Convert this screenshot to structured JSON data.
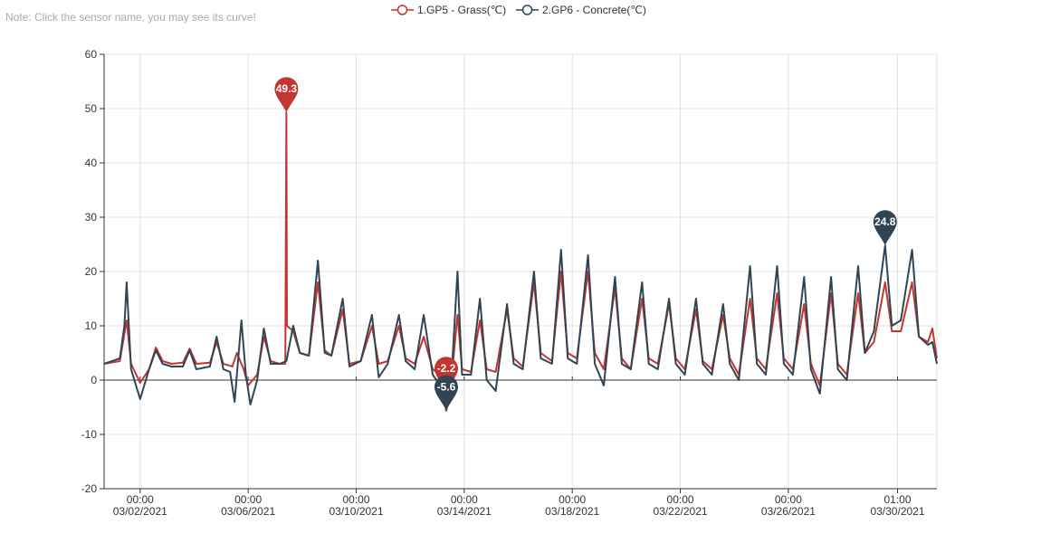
{
  "note": "Note: Click the sensor name, you may see its curve!",
  "chart_data": {
    "type": "line",
    "x_range": [
      "2021-02-28T16:00",
      "2021-03-31T12:00"
    ],
    "ylim": [
      -20,
      60
    ],
    "y_ticks": [
      60,
      50,
      40,
      30,
      20,
      10,
      0,
      -10,
      -20
    ],
    "x_ticks": [
      {
        "at": "2021-03-02T00:00",
        "time": "00:00",
        "date": "03/02/2021"
      },
      {
        "at": "2021-03-06T00:00",
        "time": "00:00",
        "date": "03/06/2021"
      },
      {
        "at": "2021-03-10T00:00",
        "time": "00:00",
        "date": "03/10/2021"
      },
      {
        "at": "2021-03-14T00:00",
        "time": "00:00",
        "date": "03/14/2021"
      },
      {
        "at": "2021-03-18T00:00",
        "time": "00:00",
        "date": "03/18/2021"
      },
      {
        "at": "2021-03-22T00:00",
        "time": "00:00",
        "date": "03/22/2021"
      },
      {
        "at": "2021-03-26T00:00",
        "time": "00:00",
        "date": "03/26/2021"
      },
      {
        "at": "2021-03-30T01:00",
        "time": "01:00",
        "date": "03/30/2021"
      }
    ],
    "grid": true,
    "legend_position": "top-center",
    "series": [
      {
        "name": "1.GP5 - Grass(℃)",
        "color": "#c23531",
        "points": [
          [
            "2021-02-28T16:00",
            3.0
          ],
          [
            "2021-03-01T06:00",
            3.5
          ],
          [
            "2021-03-01T12:00",
            11.0
          ],
          [
            "2021-03-01T16:00",
            3.0
          ],
          [
            "2021-03-02T00:00",
            -0.5
          ],
          [
            "2021-03-02T08:00",
            2.0
          ],
          [
            "2021-03-02T14:00",
            6.0
          ],
          [
            "2021-03-02T20:00",
            3.5
          ],
          [
            "2021-03-03T04:00",
            3.0
          ],
          [
            "2021-03-03T14:00",
            3.2
          ],
          [
            "2021-03-03T20:00",
            5.8
          ],
          [
            "2021-03-04T02:00",
            3.0
          ],
          [
            "2021-03-04T14:00",
            3.2
          ],
          [
            "2021-03-04T20:00",
            7.0
          ],
          [
            "2021-03-05T02:00",
            3.0
          ],
          [
            "2021-03-05T10:00",
            2.5
          ],
          [
            "2021-03-05T14:00",
            5.0
          ],
          [
            "2021-03-05T20:00",
            2.0
          ],
          [
            "2021-03-06T00:00",
            -1.0
          ],
          [
            "2021-03-06T08:00",
            1.0
          ],
          [
            "2021-03-06T14:00",
            8.0
          ],
          [
            "2021-03-06T20:00",
            3.5
          ],
          [
            "2021-03-07T04:00",
            3.0
          ],
          [
            "2021-03-07T09:00",
            3.0
          ],
          [
            "2021-03-07T10:00",
            49.3
          ],
          [
            "2021-03-07T10:30",
            10.0
          ],
          [
            "2021-03-07T16:00",
            9.0
          ],
          [
            "2021-03-07T22:00",
            5.0
          ],
          [
            "2021-03-08T06:00",
            4.5
          ],
          [
            "2021-03-08T14:00",
            18.0
          ],
          [
            "2021-03-08T20:00",
            5.5
          ],
          [
            "2021-03-09T02:00",
            4.5
          ],
          [
            "2021-03-09T12:00",
            13.0
          ],
          [
            "2021-03-09T18:00",
            3.0
          ],
          [
            "2021-03-10T04:00",
            3.5
          ],
          [
            "2021-03-10T14:00",
            10.0
          ],
          [
            "2021-03-10T20:00",
            3.0
          ],
          [
            "2021-03-11T04:00",
            3.5
          ],
          [
            "2021-03-11T14:00",
            10.0
          ],
          [
            "2021-03-11T20:00",
            4.0
          ],
          [
            "2021-03-12T04:00",
            3.0
          ],
          [
            "2021-03-12T12:00",
            8.0
          ],
          [
            "2021-03-12T20:00",
            2.0
          ],
          [
            "2021-03-13T06:00",
            0.5
          ],
          [
            "2021-03-13T14:00",
            3.0
          ],
          [
            "2021-03-13T18:00",
            12.0
          ],
          [
            "2021-03-13T22:00",
            2.0
          ],
          [
            "2021-03-14T06:00",
            1.5
          ],
          [
            "2021-03-14T14:00",
            11.0
          ],
          [
            "2021-03-14T20:00",
            2.0
          ],
          [
            "2021-03-15T04:00",
            1.5
          ],
          [
            "2021-03-15T14:00",
            13.0
          ],
          [
            "2021-03-15T20:00",
            4.0
          ],
          [
            "2021-03-16T04:00",
            2.5
          ],
          [
            "2021-03-16T14:00",
            18.0
          ],
          [
            "2021-03-16T20:00",
            5.0
          ],
          [
            "2021-03-17T06:00",
            3.5
          ],
          [
            "2021-03-17T14:00",
            20.0
          ],
          [
            "2021-03-17T20:00",
            5.0
          ],
          [
            "2021-03-18T04:00",
            4.0
          ],
          [
            "2021-03-18T14:00",
            20.0
          ],
          [
            "2021-03-18T20:00",
            5.0
          ],
          [
            "2021-03-19T04:00",
            2.0
          ],
          [
            "2021-03-19T14:00",
            17.0
          ],
          [
            "2021-03-19T20:00",
            4.0
          ],
          [
            "2021-03-20T04:00",
            2.0
          ],
          [
            "2021-03-20T14:00",
            15.0
          ],
          [
            "2021-03-20T20:00",
            4.0
          ],
          [
            "2021-03-21T04:00",
            3.0
          ],
          [
            "2021-03-21T14:00",
            14.0
          ],
          [
            "2021-03-21T20:00",
            4.0
          ],
          [
            "2021-03-22T04:00",
            2.0
          ],
          [
            "2021-03-22T14:00",
            13.0
          ],
          [
            "2021-03-22T20:00",
            3.5
          ],
          [
            "2021-03-23T04:00",
            2.0
          ],
          [
            "2021-03-23T14:00",
            12.0
          ],
          [
            "2021-03-23T20:00",
            4.0
          ],
          [
            "2021-03-24T04:00",
            1.0
          ],
          [
            "2021-03-24T14:00",
            15.0
          ],
          [
            "2021-03-24T20:00",
            4.0
          ],
          [
            "2021-03-25T04:00",
            2.0
          ],
          [
            "2021-03-25T14:00",
            16.0
          ],
          [
            "2021-03-25T20:00",
            4.0
          ],
          [
            "2021-03-26T04:00",
            2.0
          ],
          [
            "2021-03-26T14:00",
            14.0
          ],
          [
            "2021-03-26T20:00",
            3.0
          ],
          [
            "2021-03-27T04:00",
            -1.0
          ],
          [
            "2021-03-27T14:00",
            16.0
          ],
          [
            "2021-03-27T20:00",
            3.0
          ],
          [
            "2021-03-28T04:00",
            1.0
          ],
          [
            "2021-03-28T14:00",
            16.0
          ],
          [
            "2021-03-28T20:00",
            5.0
          ],
          [
            "2021-03-29T04:00",
            7.0
          ],
          [
            "2021-03-29T14:00",
            18.0
          ],
          [
            "2021-03-29T20:00",
            9.0
          ],
          [
            "2021-03-30T04:00",
            9.0
          ],
          [
            "2021-03-30T14:00",
            18.0
          ],
          [
            "2021-03-30T20:00",
            8.0
          ],
          [
            "2021-03-31T04:00",
            7.0
          ],
          [
            "2021-03-31T08:00",
            9.5
          ],
          [
            "2021-03-31T12:00",
            4.0
          ]
        ],
        "markers": [
          {
            "label": "49.3",
            "at": "2021-03-07T10:00",
            "value": 49.3
          },
          {
            "label": "-2.2",
            "at": "2021-03-13T08:00",
            "value": -2.2
          }
        ]
      },
      {
        "name": "2.GP6 - Concrete(℃)",
        "color": "#2f4554",
        "points": [
          [
            "2021-02-28T16:00",
            3.0
          ],
          [
            "2021-03-01T06:00",
            4.0
          ],
          [
            "2021-03-01T10:00",
            10.0
          ],
          [
            "2021-03-01T12:00",
            18.0
          ],
          [
            "2021-03-01T16:00",
            2.0
          ],
          [
            "2021-03-02T00:00",
            -3.5
          ],
          [
            "2021-03-02T08:00",
            2.0
          ],
          [
            "2021-03-02T14:00",
            5.5
          ],
          [
            "2021-03-02T20:00",
            3.0
          ],
          [
            "2021-03-03T04:00",
            2.5
          ],
          [
            "2021-03-03T14:00",
            2.5
          ],
          [
            "2021-03-03T20:00",
            5.5
          ],
          [
            "2021-03-04T02:00",
            2.0
          ],
          [
            "2021-03-04T14:00",
            2.5
          ],
          [
            "2021-03-04T20:00",
            8.0
          ],
          [
            "2021-03-05T02:00",
            2.0
          ],
          [
            "2021-03-05T08:00",
            1.5
          ],
          [
            "2021-03-05T12:00",
            -4.0
          ],
          [
            "2021-03-05T18:00",
            11.0
          ],
          [
            "2021-03-05T22:00",
            1.0
          ],
          [
            "2021-03-06T02:00",
            -4.5
          ],
          [
            "2021-03-06T08:00",
            0.0
          ],
          [
            "2021-03-06T14:00",
            9.5
          ],
          [
            "2021-03-06T20:00",
            3.0
          ],
          [
            "2021-03-07T04:00",
            3.0
          ],
          [
            "2021-03-07T10:00",
            3.5
          ],
          [
            "2021-03-07T16:00",
            10.0
          ],
          [
            "2021-03-07T22:00",
            5.0
          ],
          [
            "2021-03-08T06:00",
            4.5
          ],
          [
            "2021-03-08T14:00",
            22.0
          ],
          [
            "2021-03-08T20:00",
            5.0
          ],
          [
            "2021-03-09T02:00",
            4.5
          ],
          [
            "2021-03-09T12:00",
            15.0
          ],
          [
            "2021-03-09T18:00",
            2.5
          ],
          [
            "2021-03-10T04:00",
            3.5
          ],
          [
            "2021-03-10T14:00",
            12.0
          ],
          [
            "2021-03-10T20:00",
            0.5
          ],
          [
            "2021-03-11T04:00",
            3.0
          ],
          [
            "2021-03-11T14:00",
            12.0
          ],
          [
            "2021-03-11T20:00",
            3.5
          ],
          [
            "2021-03-12T04:00",
            2.0
          ],
          [
            "2021-03-12T12:00",
            12.0
          ],
          [
            "2021-03-12T20:00",
            1.0
          ],
          [
            "2021-03-13T06:00",
            -2.0
          ],
          [
            "2021-03-13T08:00",
            -5.6
          ],
          [
            "2021-03-13T12:00",
            -2.0
          ],
          [
            "2021-03-13T18:00",
            20.0
          ],
          [
            "2021-03-13T22:00",
            1.0
          ],
          [
            "2021-03-14T06:00",
            1.0
          ],
          [
            "2021-03-14T14:00",
            15.0
          ],
          [
            "2021-03-14T20:00",
            0.0
          ],
          [
            "2021-03-15T04:00",
            -2.0
          ],
          [
            "2021-03-15T14:00",
            14.0
          ],
          [
            "2021-03-15T20:00",
            3.0
          ],
          [
            "2021-03-16T04:00",
            2.0
          ],
          [
            "2021-03-16T14:00",
            20.0
          ],
          [
            "2021-03-16T20:00",
            4.0
          ],
          [
            "2021-03-17T06:00",
            3.0
          ],
          [
            "2021-03-17T14:00",
            24.0
          ],
          [
            "2021-03-17T20:00",
            4.0
          ],
          [
            "2021-03-18T04:00",
            3.0
          ],
          [
            "2021-03-18T14:00",
            23.0
          ],
          [
            "2021-03-18T20:00",
            3.0
          ],
          [
            "2021-03-19T04:00",
            -1.0
          ],
          [
            "2021-03-19T14:00",
            19.0
          ],
          [
            "2021-03-19T20:00",
            3.0
          ],
          [
            "2021-03-20T04:00",
            2.0
          ],
          [
            "2021-03-20T14:00",
            18.0
          ],
          [
            "2021-03-20T20:00",
            3.0
          ],
          [
            "2021-03-21T04:00",
            2.0
          ],
          [
            "2021-03-21T14:00",
            15.0
          ],
          [
            "2021-03-21T20:00",
            3.0
          ],
          [
            "2021-03-22T04:00",
            1.0
          ],
          [
            "2021-03-22T14:00",
            15.0
          ],
          [
            "2021-03-22T20:00",
            3.0
          ],
          [
            "2021-03-23T04:00",
            1.0
          ],
          [
            "2021-03-23T14:00",
            14.0
          ],
          [
            "2021-03-23T20:00",
            3.0
          ],
          [
            "2021-03-24T04:00",
            0.0
          ],
          [
            "2021-03-24T14:00",
            21.0
          ],
          [
            "2021-03-24T20:00",
            3.0
          ],
          [
            "2021-03-25T04:00",
            1.0
          ],
          [
            "2021-03-25T14:00",
            21.0
          ],
          [
            "2021-03-25T20:00",
            3.0
          ],
          [
            "2021-03-26T04:00",
            1.0
          ],
          [
            "2021-03-26T14:00",
            19.0
          ],
          [
            "2021-03-26T20:00",
            2.0
          ],
          [
            "2021-03-27T04:00",
            -2.5
          ],
          [
            "2021-03-27T14:00",
            19.0
          ],
          [
            "2021-03-27T20:00",
            2.0
          ],
          [
            "2021-03-28T04:00",
            0.0
          ],
          [
            "2021-03-28T14:00",
            21.0
          ],
          [
            "2021-03-28T20:00",
            5.0
          ],
          [
            "2021-03-29T04:00",
            9.0
          ],
          [
            "2021-03-29T14:00",
            24.8
          ],
          [
            "2021-03-29T20:00",
            10.0
          ],
          [
            "2021-03-30T04:00",
            11.0
          ],
          [
            "2021-03-30T14:00",
            24.0
          ],
          [
            "2021-03-30T20:00",
            8.0
          ],
          [
            "2021-03-31T04:00",
            6.5
          ],
          [
            "2021-03-31T08:00",
            7.0
          ],
          [
            "2021-03-31T12:00",
            3.0
          ]
        ],
        "markers": [
          {
            "label": "-5.6",
            "at": "2021-03-13T08:00",
            "value": -5.6
          },
          {
            "label": "24.8",
            "at": "2021-03-29T14:00",
            "value": 24.8
          }
        ]
      }
    ]
  }
}
